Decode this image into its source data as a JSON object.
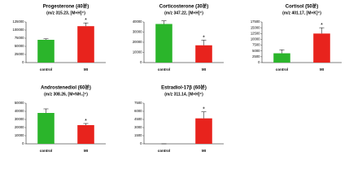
{
  "chart_data": [
    {
      "type": "bar",
      "title": "Progesterone (40분)",
      "subtitle": "(m/z 315.23, [M+H]⁺)",
      "categories": [
        "control",
        "MI"
      ],
      "values": [
        70000,
        112000
      ],
      "errors": [
        3000,
        10000
      ],
      "colors": [
        "#2bb52b",
        "#e8231d"
      ],
      "annotation": "*",
      "ylim": [
        0,
        125000
      ],
      "yticks": [
        0,
        25000,
        50000,
        75000,
        100000,
        125000
      ]
    },
    {
      "type": "bar",
      "title": "Corticosterone (30분)",
      "subtitle": "(m/z 347.22, [M+H]⁺)",
      "categories": [
        "control",
        "MI"
      ],
      "values": [
        38000,
        17000
      ],
      "errors": [
        3000,
        5000
      ],
      "colors": [
        "#2bb52b",
        "#e8231d"
      ],
      "annotation": "*",
      "ylim": [
        0,
        40000
      ],
      "yticks": [
        0,
        10000,
        20000,
        30000,
        40000
      ]
    },
    {
      "type": "bar",
      "title": "Cortisol (50분)",
      "subtitle": "(m/z 401.17, [M+K]⁺)",
      "categories": [
        "control",
        "MI"
      ],
      "values": [
        4000,
        12500
      ],
      "errors": [
        1500,
        2500
      ],
      "colors": [
        "#2bb52b",
        "#e8231d"
      ],
      "annotation": "*",
      "ylim": [
        0,
        17500
      ],
      "yticks": [
        0,
        2500,
        5000,
        7500,
        10000,
        12500,
        15000,
        17500
      ]
    },
    {
      "type": "bar",
      "title": "Androstenediol (60분)",
      "subtitle": "(m/z 308.26, [M+NH₄]⁺)",
      "categories": [
        "control",
        "MI"
      ],
      "values": [
        38000,
        23000
      ],
      "errors": [
        5000,
        2000
      ],
      "colors": [
        "#2bb52b",
        "#e8231d"
      ],
      "annotation": "*",
      "ylim": [
        0,
        50000
      ],
      "yticks": [
        0,
        10000,
        20000,
        30000,
        40000,
        50000
      ]
    },
    {
      "type": "bar",
      "title": "Estradiol-17β (60분)",
      "subtitle": "(m/z 311.14, [M+H]⁺)",
      "categories": [
        "control",
        "MI"
      ],
      "values": [
        0,
        4700
      ],
      "errors": [
        0,
        1200
      ],
      "colors": [
        "#2bb52b",
        "#e8231d"
      ],
      "annotation": "*",
      "ylim": [
        0,
        7500
      ],
      "yticks": [
        0,
        1500,
        3000,
        4500,
        6000,
        7500
      ]
    }
  ]
}
